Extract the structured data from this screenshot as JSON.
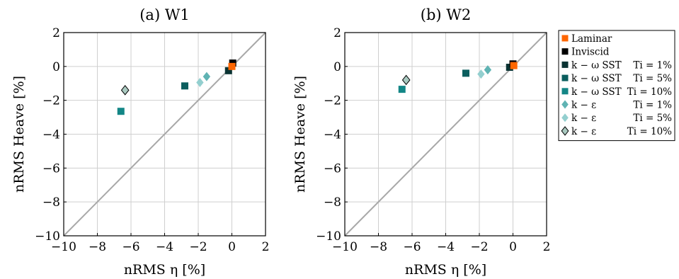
{
  "colors": {
    "laminar": "#ff6600",
    "inviscid": "#000000",
    "kw_1": "#0a3333",
    "kw_5": "#0b5e5e",
    "kw_10": "#138686",
    "ke_1": "#5fb3b3",
    "ke_5": "#93cfcf",
    "ke_10": "#a9c9c0",
    "diagonal": "#a8a8a8",
    "grid": "#cfcfcf"
  },
  "chart_data": [
    {
      "type": "scatter",
      "title": "(a) W1",
      "xlabel": "nRMS η [%]",
      "ylabel": "nRMS Heave [%]",
      "xlim": [
        -10,
        2
      ],
      "ylim": [
        -10,
        2
      ],
      "xticks": [
        "−10",
        "−8",
        "−6",
        "−4",
        "−2",
        "0",
        "2"
      ],
      "yticks": [
        "2",
        "0",
        "−2",
        "−4",
        "−6",
        "−8",
        "−10"
      ],
      "grid": true,
      "reference_line": "y = x",
      "series": [
        {
          "name": "Laminar",
          "marker": "square",
          "color_key": "laminar",
          "points": [
            [
              0.0,
              0.0
            ]
          ]
        },
        {
          "name": "Inviscid",
          "marker": "square",
          "color_key": "inviscid",
          "points": [
            [
              0.05,
              0.2
            ]
          ]
        },
        {
          "name": "k − ω SST Ti = 1%",
          "marker": "square",
          "color_key": "kw_1",
          "points": [
            [
              -0.2,
              -0.25
            ]
          ]
        },
        {
          "name": "k − ω SST Ti = 5%",
          "marker": "square",
          "color_key": "kw_5",
          "points": [
            [
              -2.8,
              -1.15
            ]
          ]
        },
        {
          "name": "k − ω SST Ti = 10%",
          "marker": "square",
          "color_key": "kw_10",
          "points": [
            [
              -6.6,
              -2.65
            ]
          ]
        },
        {
          "name": "k − ε Ti = 1%",
          "marker": "diamond",
          "color_key": "ke_1",
          "points": [
            [
              -1.5,
              -0.6
            ]
          ]
        },
        {
          "name": "k − ε Ti = 5%",
          "marker": "diamond",
          "color_key": "ke_5",
          "points": [
            [
              -1.9,
              -0.95
            ]
          ]
        },
        {
          "name": "k − ε Ti = 10%",
          "marker": "diamond",
          "color_key": "ke_10",
          "points": [
            [
              -6.35,
              -1.4
            ]
          ]
        }
      ]
    },
    {
      "type": "scatter",
      "title": "(b) W2",
      "xlabel": "nRMS η [%]",
      "ylabel": "nRMS Heave [%]",
      "xlim": [
        -10,
        2
      ],
      "ylim": [
        -10,
        2
      ],
      "xticks": [
        "−10",
        "−8",
        "−6",
        "−4",
        "−2",
        "0",
        "2"
      ],
      "yticks": [
        "2",
        "0",
        "−2",
        "−4",
        "−6",
        "−8",
        "−10"
      ],
      "grid": true,
      "reference_line": "y = x",
      "series": [
        {
          "name": "Laminar",
          "marker": "square",
          "color_key": "laminar",
          "points": [
            [
              0.05,
              0.05
            ]
          ]
        },
        {
          "name": "Inviscid",
          "marker": "square",
          "color_key": "inviscid",
          "points": [
            [
              0.0,
              0.15
            ]
          ]
        },
        {
          "name": "k − ω SST Ti = 1%",
          "marker": "square",
          "color_key": "kw_1",
          "points": [
            [
              -0.2,
              -0.05
            ]
          ]
        },
        {
          "name": "k − ω SST Ti = 5%",
          "marker": "square",
          "color_key": "kw_5",
          "points": [
            [
              -2.8,
              -0.4
            ]
          ]
        },
        {
          "name": "k − ω SST Ti = 10%",
          "marker": "square",
          "color_key": "kw_10",
          "points": [
            [
              -6.6,
              -1.35
            ]
          ]
        },
        {
          "name": "k − ε Ti = 1%",
          "marker": "diamond",
          "color_key": "ke_1",
          "points": [
            [
              -1.5,
              -0.2
            ]
          ]
        },
        {
          "name": "k − ε Ti = 5%",
          "marker": "diamond",
          "color_key": "ke_5",
          "points": [
            [
              -1.9,
              -0.45
            ]
          ]
        },
        {
          "name": "k − ε Ti = 10%",
          "marker": "diamond",
          "color_key": "ke_10",
          "points": [
            [
              -6.35,
              -0.8
            ]
          ]
        }
      ]
    }
  ],
  "legend": {
    "placement": "right",
    "entries": [
      {
        "label": "Laminar",
        "label_a": "Laminar",
        "label_b": "",
        "marker": "square",
        "color_key": "laminar"
      },
      {
        "label": "Inviscid",
        "label_a": "Inviscid",
        "label_b": "",
        "marker": "square",
        "color_key": "inviscid"
      },
      {
        "label": "k − ω SST Ti = 1%",
        "label_a": "k − ω SST",
        "label_b": "Ti = 1%",
        "marker": "square",
        "color_key": "kw_1"
      },
      {
        "label": "k − ω SST Ti = 5%",
        "label_a": "k − ω SST",
        "label_b": "Ti = 5%",
        "marker": "square",
        "color_key": "kw_5"
      },
      {
        "label": "k − ω SST Ti = 10%",
        "label_a": "k − ω SST",
        "label_b": "Ti = 10%",
        "marker": "square",
        "color_key": "kw_10"
      },
      {
        "label": "k − ε Ti = 1%",
        "label_a": "k − ε",
        "label_b": "Ti = 1%",
        "marker": "diamond",
        "color_key": "ke_1"
      },
      {
        "label": "k − ε Ti = 5%",
        "label_a": "k − ε",
        "label_b": "Ti = 5%",
        "marker": "diamond",
        "color_key": "ke_5"
      },
      {
        "label": "k − ε Ti = 10%",
        "label_a": "k − ε",
        "label_b": "Ti = 10%",
        "marker": "diamond",
        "color_key": "ke_10"
      }
    ]
  }
}
